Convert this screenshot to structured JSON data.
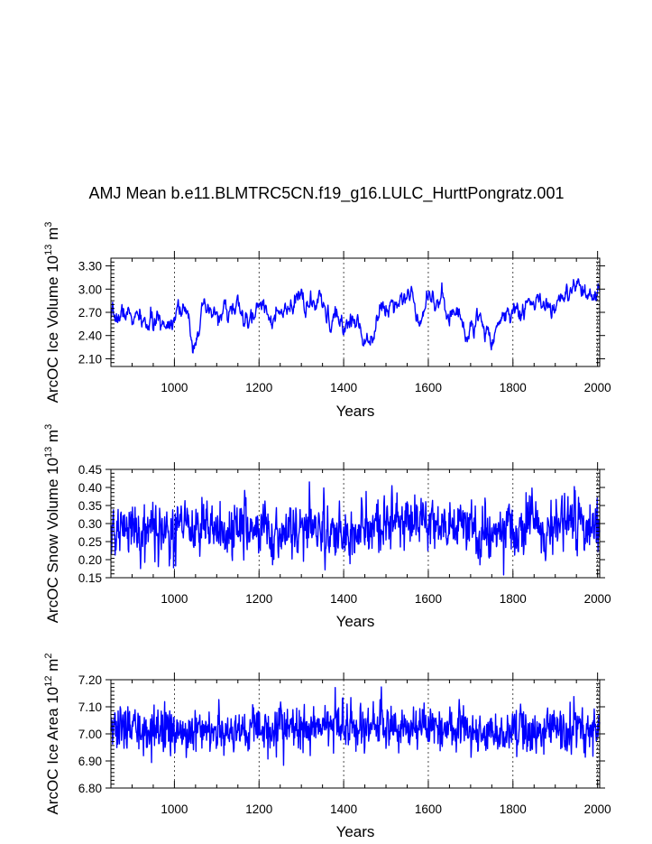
{
  "title": "AMJ Mean b.e11.BLMTRC5CN.f19_g16.LULC_HurttPongratz.001",
  "line_color": "#0000ff",
  "chart_data": [
    {
      "type": "line",
      "name": "ice-volume",
      "ylabel": "ArcOC Ice Volume 10¹³ m³",
      "ylabel_parts": {
        "pre": "ArcOC Ice Volume 10",
        "exp1": "13",
        "mid": " m",
        "exp2": "3"
      },
      "xlabel": "Years",
      "xlim": [
        850,
        2005
      ],
      "ylim": [
        2.0,
        3.4
      ],
      "xticks": [
        1000,
        1200,
        1400,
        1600,
        1800,
        2000
      ],
      "xtick_labels": [
        "1000",
        "1200",
        "1400",
        "1600",
        "1800",
        "2000"
      ],
      "yticks": [
        2.1,
        2.4,
        2.7,
        3.0,
        3.3
      ],
      "ytick_labels": [
        "2.10",
        "2.40",
        "2.70",
        "3.00",
        "3.30"
      ],
      "series": [
        {
          "name": "ArcOC Ice Volume",
          "anchors_x": [
            850,
            880,
            905,
            930,
            960,
            990,
            1010,
            1030,
            1045,
            1060,
            1090,
            1120,
            1150,
            1175,
            1200,
            1215,
            1235,
            1260,
            1280,
            1300,
            1320,
            1345,
            1360,
            1385,
            1400,
            1430,
            1450,
            1470,
            1495,
            1520,
            1540,
            1560,
            1580,
            1600,
            1620,
            1640,
            1660,
            1680,
            1690,
            1710,
            1730,
            1750,
            1770,
            1800,
            1820,
            1850,
            1880,
            1910,
            1940,
            1960,
            1980,
            2000,
            2005
          ],
          "anchors_y": [
            2.55,
            2.7,
            2.62,
            2.55,
            2.55,
            2.6,
            2.85,
            2.6,
            2.3,
            2.65,
            2.65,
            2.7,
            2.75,
            2.5,
            2.8,
            2.82,
            2.6,
            2.65,
            2.72,
            2.95,
            2.75,
            2.8,
            2.6,
            2.58,
            2.55,
            2.6,
            2.35,
            2.55,
            2.75,
            2.85,
            2.95,
            2.9,
            2.65,
            3.0,
            2.85,
            2.75,
            2.7,
            2.6,
            2.4,
            2.6,
            2.55,
            2.4,
            2.6,
            2.75,
            2.7,
            2.85,
            2.75,
            2.85,
            2.9,
            3.0,
            2.85,
            2.9,
            2.85
          ],
          "noise": 0.08,
          "smooth": 0.8,
          "seed": 7
        }
      ]
    },
    {
      "type": "line",
      "name": "snow-volume",
      "ylabel": "ArcOC Snow Volume 10¹³ m³",
      "ylabel_parts": {
        "pre": "ArcOC Snow Volume 10",
        "exp1": "13",
        "mid": " m",
        "exp2": "3"
      },
      "xlabel": "Years",
      "xlim": [
        850,
        2005
      ],
      "ylim": [
        0.15,
        0.45
      ],
      "xticks": [
        1000,
        1200,
        1400,
        1600,
        1800,
        2000
      ],
      "xtick_labels": [
        "1000",
        "1200",
        "1400",
        "1600",
        "1800",
        "2000"
      ],
      "yticks": [
        0.15,
        0.2,
        0.25,
        0.3,
        0.35,
        0.4,
        0.45
      ],
      "ytick_labels": [
        "0.15",
        "0.20",
        "0.25",
        "0.30",
        "0.35",
        "0.40",
        "0.45"
      ],
      "series": [
        {
          "name": "ArcOC Snow Volume",
          "anchors_x": [
            850,
            900,
            950,
            1000,
            1050,
            1100,
            1150,
            1200,
            1250,
            1300,
            1350,
            1400,
            1450,
            1500,
            1550,
            1600,
            1650,
            1700,
            1750,
            1800,
            1850,
            1900,
            1950,
            2000,
            2005
          ],
          "anchors_y": [
            0.27,
            0.29,
            0.28,
            0.28,
            0.29,
            0.28,
            0.29,
            0.28,
            0.28,
            0.29,
            0.29,
            0.27,
            0.28,
            0.29,
            0.31,
            0.31,
            0.3,
            0.29,
            0.27,
            0.28,
            0.29,
            0.29,
            0.31,
            0.3,
            0.23
          ],
          "noise": 0.038,
          "smooth": 0.3,
          "seed": 21
        }
      ]
    },
    {
      "type": "line",
      "name": "ice-area",
      "ylabel": "ArcOC Ice Area 10¹² m²",
      "ylabel_parts": {
        "pre": "ArcOC Ice Area 10",
        "exp1": "12",
        "mid": " m",
        "exp2": "2"
      },
      "xlabel": "Years",
      "xlim": [
        850,
        2005
      ],
      "ylim": [
        6.8,
        7.2
      ],
      "xticks": [
        1000,
        1200,
        1400,
        1600,
        1800,
        2000
      ],
      "xtick_labels": [
        "1000",
        "1200",
        "1400",
        "1600",
        "1800",
        "2000"
      ],
      "yticks": [
        6.8,
        6.9,
        7.0,
        7.1,
        7.2
      ],
      "ytick_labels": [
        "6.80",
        "6.90",
        "7.00",
        "7.10",
        "7.20"
      ],
      "series": [
        {
          "name": "ArcOC Ice Area",
          "anchors_x": [
            850,
            950,
            1050,
            1150,
            1250,
            1350,
            1450,
            1550,
            1650,
            1750,
            1850,
            1950,
            2005
          ],
          "anchors_y": [
            7.02,
            7.01,
            7.01,
            7.02,
            7.03,
            7.02,
            7.03,
            7.03,
            7.02,
            7.0,
            7.01,
            7.02,
            7.03
          ],
          "noise": 0.04,
          "smooth": 0.15,
          "seed": 33
        }
      ]
    }
  ]
}
